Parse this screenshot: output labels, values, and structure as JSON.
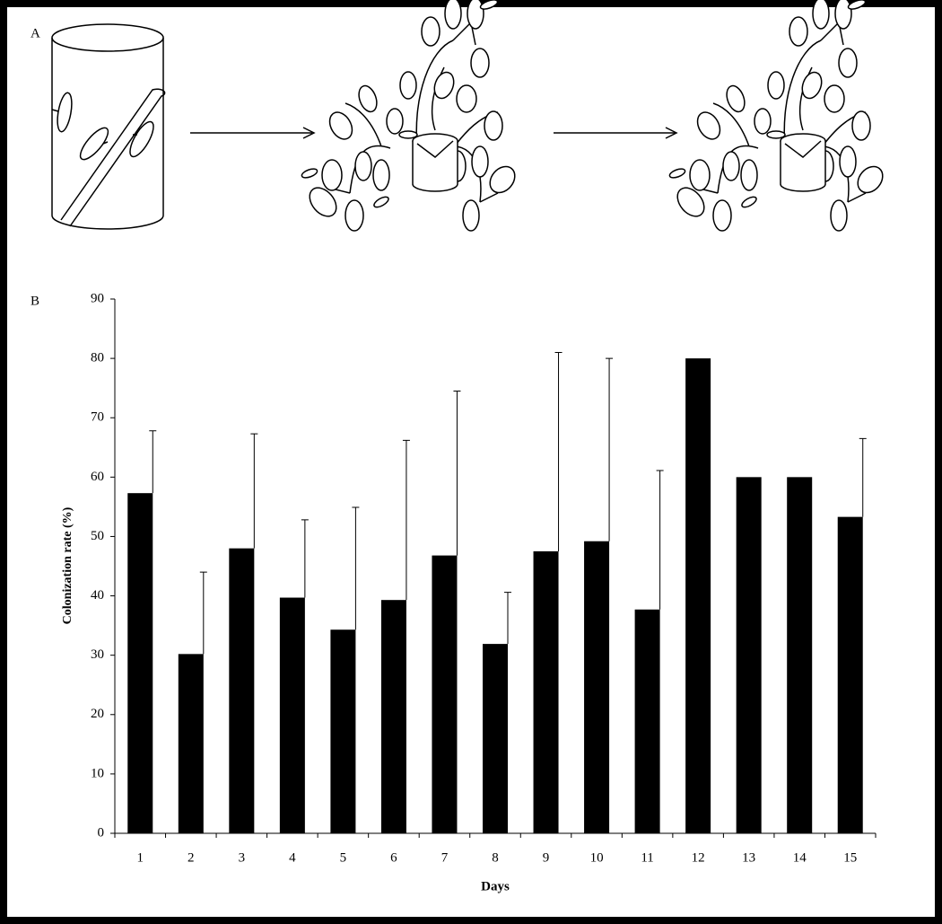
{
  "panel_labels": [
    "A",
    "B"
  ],
  "chart_data": {
    "type": "bar",
    "xlabel": "Days",
    "ylabel": "Colonization rate (%)",
    "categories": [
      "1",
      "2",
      "3",
      "4",
      "5",
      "6",
      "7",
      "8",
      "9",
      "10",
      "11",
      "12",
      "13",
      "14",
      "15"
    ],
    "values": [
      57.3,
      30.2,
      48,
      39.7,
      34.3,
      39.3,
      46.8,
      31.9,
      47.5,
      49.2,
      37.7,
      80,
      60,
      60,
      53.3
    ],
    "errors": [
      10.5,
      13.8,
      19.3,
      13.1,
      20.6,
      26.9,
      27.7,
      8.7,
      33.5,
      30.8,
      23.4,
      null,
      null,
      null,
      13.2
    ],
    "color": "#000000",
    "ylim": [
      0,
      90
    ],
    "yticks": [
      0,
      10,
      20,
      30,
      40,
      50,
      60,
      70,
      80,
      90
    ]
  }
}
